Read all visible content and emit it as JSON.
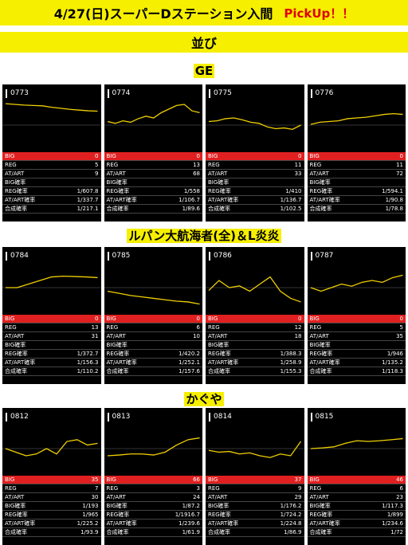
{
  "header": {
    "title": "4/27(日)スーパーDステーション入間",
    "pickup": "PickUp！！"
  },
  "subheader": "並び",
  "sections": [
    {
      "title": "GE",
      "machines": [
        {
          "id": "0773",
          "series": [
            [
              0,
              60
            ],
            [
              1,
              58
            ],
            [
              2,
              56
            ],
            [
              3,
              55
            ],
            [
              4,
              54
            ],
            [
              5,
              50
            ],
            [
              6,
              47
            ],
            [
              7,
              44
            ],
            [
              8,
              42
            ],
            [
              9,
              40
            ],
            [
              10,
              39
            ]
          ],
          "stats": {
            "big": "0",
            "reg": "5",
            "at": "9",
            "big_p": "",
            "reg_p": "1/607.8",
            "at_p": "1/337.7",
            "total_p": "1/217.1"
          }
        },
        {
          "id": "0774",
          "series": [
            [
              0,
              10
            ],
            [
              1,
              5
            ],
            [
              2,
              12
            ],
            [
              3,
              8
            ],
            [
              4,
              18
            ],
            [
              5,
              25
            ],
            [
              6,
              20
            ],
            [
              7,
              35
            ],
            [
              8,
              45
            ],
            [
              9,
              55
            ],
            [
              10,
              58
            ],
            [
              11,
              40
            ],
            [
              12,
              35
            ]
          ],
          "stats": {
            "big": "0",
            "reg": "13",
            "at": "68",
            "big_p": "",
            "reg_p": "1/558",
            "at_p": "1/106.7",
            "total_p": "1/89.6"
          }
        },
        {
          "id": "0775",
          "series": [
            [
              0,
              10
            ],
            [
              1,
              12
            ],
            [
              2,
              18
            ],
            [
              3,
              20
            ],
            [
              4,
              15
            ],
            [
              5,
              8
            ],
            [
              6,
              5
            ],
            [
              7,
              -5
            ],
            [
              8,
              -10
            ],
            [
              9,
              -8
            ],
            [
              10,
              -12
            ],
            [
              11,
              0
            ]
          ],
          "stats": {
            "big": "0",
            "reg": "11",
            "at": "33",
            "big_p": "",
            "reg_p": "1/410",
            "at_p": "1/136.7",
            "total_p": "1/102.5"
          }
        },
        {
          "id": "0776",
          "series": [
            [
              0,
              2
            ],
            [
              1,
              8
            ],
            [
              2,
              10
            ],
            [
              3,
              12
            ],
            [
              4,
              18
            ],
            [
              5,
              20
            ],
            [
              6,
              22
            ],
            [
              7,
              26
            ],
            [
              8,
              30
            ],
            [
              9,
              32
            ],
            [
              10,
              30
            ]
          ],
          "stats": {
            "big": "0",
            "reg": "11",
            "at": "72",
            "big_p": "",
            "reg_p": "1/594.1",
            "at_p": "1/90.8",
            "total_p": "1/78.8"
          }
        }
      ]
    },
    {
      "title": "ルパン大航海者(全)＆L炎炎",
      "machines": [
        {
          "id": "0784",
          "series": [
            [
              0,
              0
            ],
            [
              1,
              0
            ],
            [
              2,
              10
            ],
            [
              3,
              20
            ],
            [
              4,
              30
            ],
            [
              5,
              32
            ],
            [
              6,
              31
            ],
            [
              7,
              30
            ],
            [
              8,
              28
            ]
          ],
          "stats": {
            "big": "0",
            "reg": "13",
            "at": "31",
            "big_p": "",
            "reg_p": "1/372.7",
            "at_p": "1/156.3",
            "total_p": "1/110.2"
          }
        },
        {
          "id": "0785",
          "series": [
            [
              0,
              -10
            ],
            [
              1,
              -16
            ],
            [
              2,
              -22
            ],
            [
              3,
              -26
            ],
            [
              4,
              -30
            ],
            [
              5,
              -34
            ],
            [
              6,
              -38
            ],
            [
              7,
              -40
            ],
            [
              8,
              -46
            ]
          ],
          "stats": {
            "big": "0",
            "reg": "6",
            "at": "10",
            "big_p": "",
            "reg_p": "1/420.2",
            "at_p": "1/252.1",
            "total_p": "1/157.6"
          }
        },
        {
          "id": "0786",
          "series": [
            [
              0,
              -8
            ],
            [
              1,
              20
            ],
            [
              2,
              0
            ],
            [
              3,
              5
            ],
            [
              4,
              -10
            ],
            [
              5,
              10
            ],
            [
              6,
              30
            ],
            [
              7,
              -10
            ],
            [
              8,
              -30
            ],
            [
              9,
              -40
            ]
          ],
          "stats": {
            "big": "0",
            "reg": "12",
            "at": "18",
            "big_p": "",
            "reg_p": "1/388.3",
            "at_p": "1/258.9",
            "total_p": "1/155.3"
          }
        },
        {
          "id": "0787",
          "series": [
            [
              0,
              0
            ],
            [
              1,
              -10
            ],
            [
              2,
              0
            ],
            [
              3,
              10
            ],
            [
              4,
              4
            ],
            [
              5,
              15
            ],
            [
              6,
              20
            ],
            [
              7,
              15
            ],
            [
              8,
              28
            ],
            [
              9,
              35
            ]
          ],
          "stats": {
            "big": "0",
            "reg": "5",
            "at": "35",
            "big_p": "",
            "reg_p": "1/946",
            "at_p": "1/135.2",
            "total_p": "1/118.3"
          }
        }
      ]
    },
    {
      "title": "かぐや",
      "machines": [
        {
          "id": "0812",
          "series": [
            [
              0,
              0
            ],
            [
              1,
              -10
            ],
            [
              2,
              -20
            ],
            [
              3,
              -15
            ],
            [
              4,
              0
            ],
            [
              5,
              -15
            ],
            [
              6,
              20
            ],
            [
              7,
              25
            ],
            [
              8,
              10
            ],
            [
              9,
              15
            ]
          ],
          "stats": {
            "big": "35",
            "reg": "7",
            "at": "30",
            "big_p": "1/193",
            "reg_p": "1/965",
            "at_p": "1/225.2",
            "total_p": "1/93.9"
          }
        },
        {
          "id": "0813",
          "series": [
            [
              0,
              -20
            ],
            [
              1,
              -18
            ],
            [
              2,
              -15
            ],
            [
              3,
              -15
            ],
            [
              4,
              -18
            ],
            [
              5,
              -10
            ],
            [
              6,
              10
            ],
            [
              7,
              25
            ],
            [
              8,
              30
            ]
          ],
          "stats": {
            "big": "66",
            "reg": "3",
            "at": "24",
            "big_p": "1/87.2",
            "reg_p": "1/1916.7",
            "at_p": "1/239.6",
            "total_p": "1/61.9"
          }
        },
        {
          "id": "0814",
          "series": [
            [
              0,
              -5
            ],
            [
              1,
              -10
            ],
            [
              2,
              -8
            ],
            [
              3,
              -15
            ],
            [
              4,
              -12
            ],
            [
              5,
              -20
            ],
            [
              6,
              -25
            ],
            [
              7,
              -15
            ],
            [
              8,
              -20
            ],
            [
              9,
              20
            ]
          ],
          "stats": {
            "big": "37",
            "reg": "9",
            "at": "29",
            "big_p": "1/176.2",
            "reg_p": "1/724.2",
            "at_p": "1/224.8",
            "total_p": "1/86.9"
          }
        },
        {
          "id": "0815",
          "series": [
            [
              0,
              0
            ],
            [
              1,
              2
            ],
            [
              2,
              5
            ],
            [
              3,
              15
            ],
            [
              4,
              22
            ],
            [
              5,
              20
            ],
            [
              6,
              22
            ],
            [
              7,
              25
            ],
            [
              8,
              28
            ]
          ],
          "stats": {
            "big": "46",
            "reg": "6",
            "at": "23",
            "big_p": "1/117.3",
            "reg_p": "1/899",
            "at_p": "1/234.6",
            "total_p": "1/72"
          }
        }
      ]
    }
  ],
  "labels": {
    "big": "BIG",
    "reg": "REG",
    "at": "AT/ART",
    "big_p": "BIG確率",
    "reg_p": "REG確率",
    "at_p": "AT/ART確率",
    "total_p": "合成確率"
  },
  "colors": {
    "yellow": "#f6ef00",
    "red": "#e02020",
    "line": "#f0d000"
  }
}
